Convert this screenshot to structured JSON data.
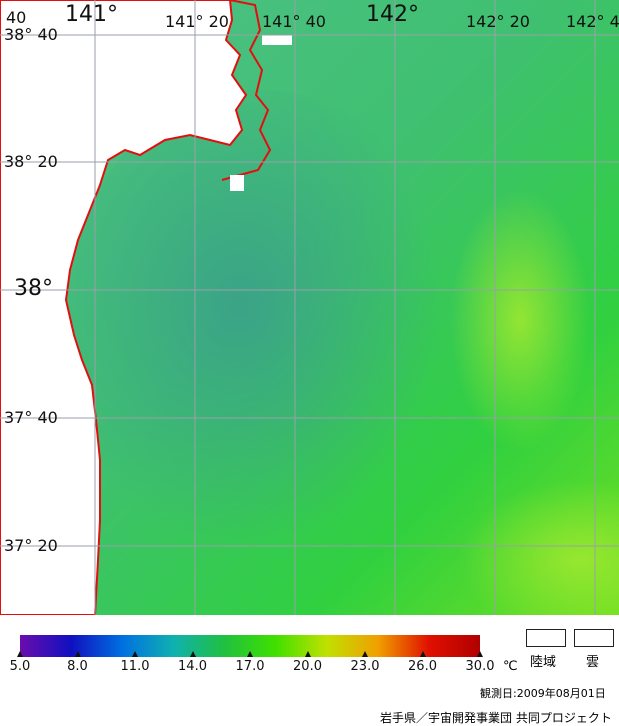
{
  "map": {
    "lat_labels": [
      "38° 40",
      "38° 20",
      "38°",
      "37° 40",
      "37° 20"
    ],
    "lon_labels_top": [
      "40",
      "141°",
      "141° 20",
      "141° 40",
      "142°",
      "142° 20",
      "142° 4"
    ]
  },
  "legend": {
    "ticks": [
      "5.0",
      "8.0",
      "11.0",
      "14.0",
      "17.0",
      "20.0",
      "23.0",
      "26.0",
      "30.0"
    ],
    "unit": "℃",
    "land_label": "陸域",
    "cloud_label": "雲",
    "observation_date": "観測日:2009年08月01日",
    "credit": "岩手県／宇宙開発事業団 共同プロジェクト",
    "colors": [
      "#6a0dad",
      "#1010c0",
      "#0070e0",
      "#10b0b0",
      "#20c040",
      "#40e000",
      "#c0e000",
      "#f0a000",
      "#e01000",
      "#b00000"
    ]
  }
}
